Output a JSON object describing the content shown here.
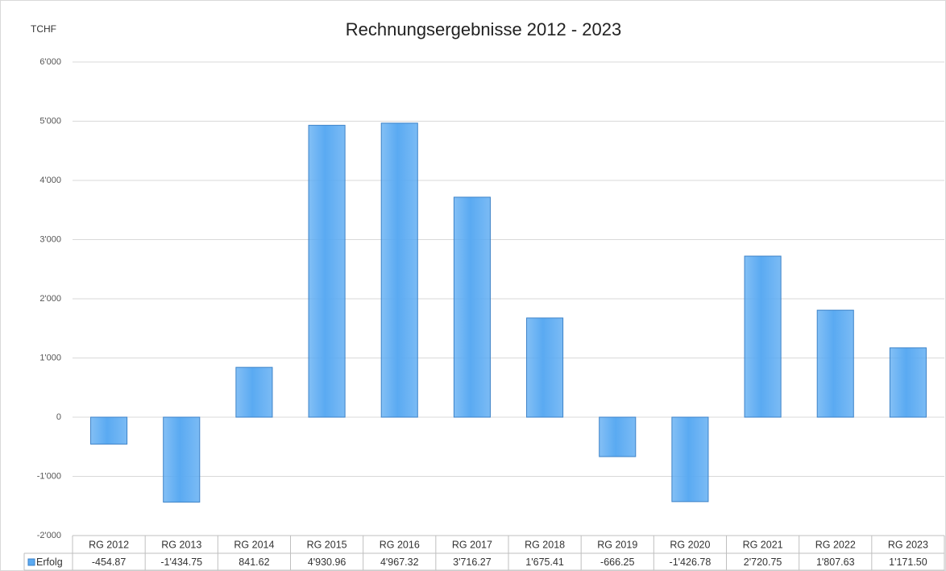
{
  "chart_data": {
    "type": "bar",
    "title": "Rechnungsergebnisse 2012 - 2023",
    "y_axis_label": "TCHF",
    "categories": [
      "RG 2012",
      "RG 2013",
      "RG 2014",
      "RG 2015",
      "RG 2016",
      "RG 2017",
      "RG 2018",
      "RG 2019",
      "RG 2020",
      "RG 2021",
      "RG 2022",
      "RG 2023"
    ],
    "series": [
      {
        "name": "Erfolg",
        "color": "#5aaaf2",
        "values": [
          -454.87,
          -1434.75,
          841.62,
          4930.96,
          4967.32,
          3716.27,
          1675.41,
          -666.25,
          -1426.78,
          2720.75,
          1807.63,
          1171.5
        ],
        "value_labels": [
          "-454.87",
          "-1'434.75",
          "841.62",
          "4'930.96",
          "4'967.32",
          "3'716.27",
          "1'675.41",
          "-666.25",
          "-1'426.78",
          "2'720.75",
          "1'807.63",
          "1'171.50"
        ]
      }
    ],
    "ylim": [
      -2000,
      6000
    ],
    "yticks": [
      {
        "value": -2000,
        "label": "-2'000"
      },
      {
        "value": -1000,
        "label": "-1'000"
      },
      0,
      {
        "value": 1000,
        "label": "1'000"
      },
      {
        "value": 2000,
        "label": "2'000"
      },
      {
        "value": 3000,
        "label": "3'000"
      },
      {
        "value": 4000,
        "label": "4'000"
      },
      {
        "value": 5000,
        "label": "5'000"
      },
      {
        "value": 6000,
        "label": "6'000"
      }
    ],
    "grid": true
  }
}
